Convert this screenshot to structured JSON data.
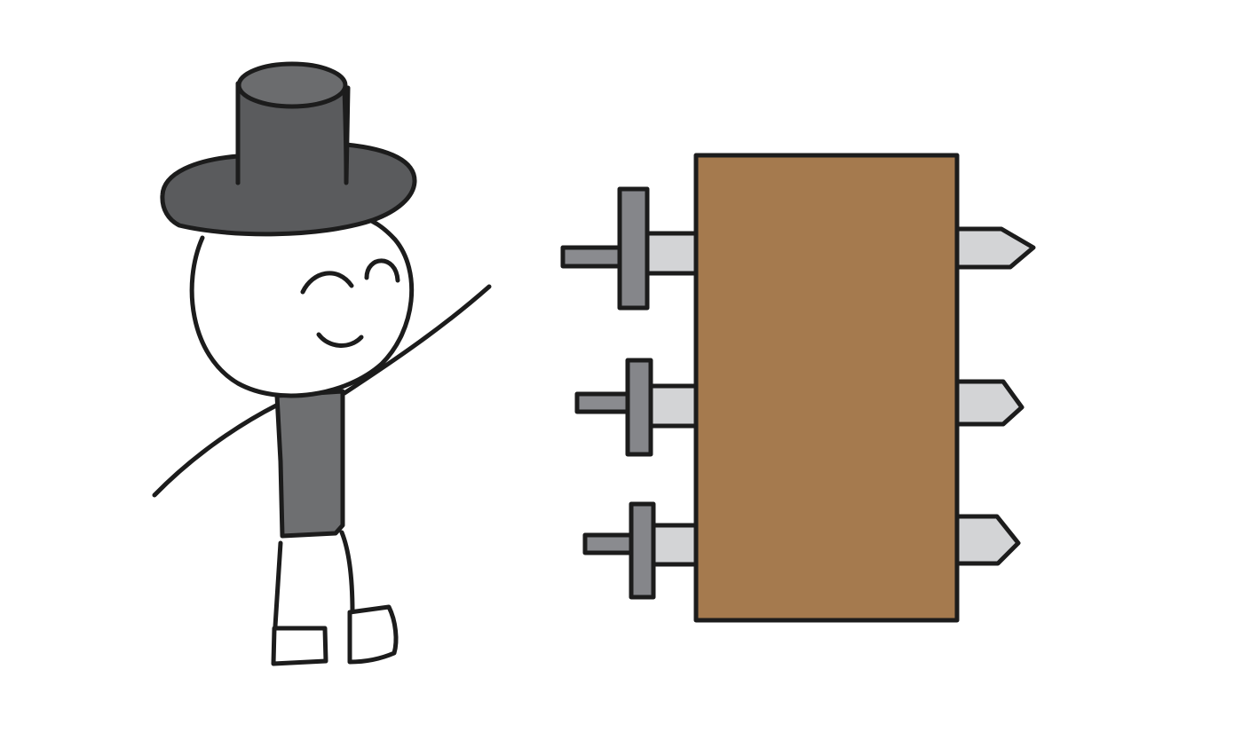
{
  "colors": {
    "background": "#ffffff",
    "outline": "#1c1c1c",
    "hat": "#5a5b5d",
    "hat_top": "#6b6c6e",
    "shirt": "#6e6f71",
    "wood_block": "#a57a4e",
    "sword_blade": "#d3d4d6",
    "sword_guard": "#85868a",
    "sword_handle": "#8a8b8f"
  },
  "scene": {
    "character": "stick-figure-with-top-hat",
    "object": "wooden-block-pierced-by-swords",
    "sword_count": 3
  }
}
